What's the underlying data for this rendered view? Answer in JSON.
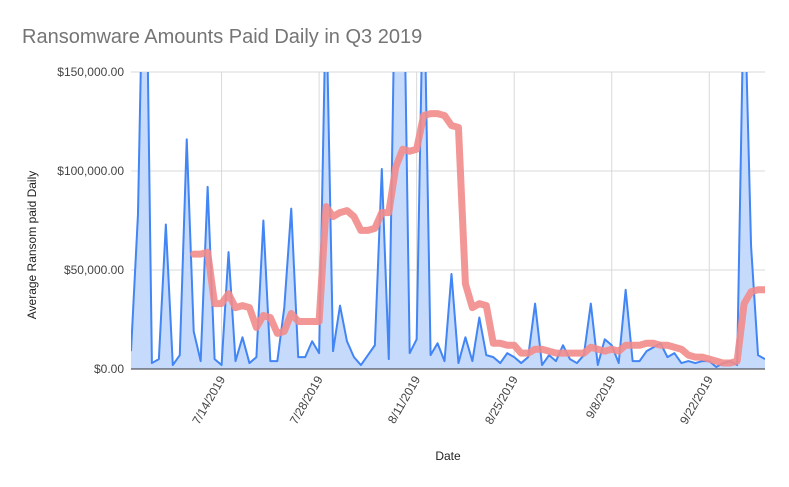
{
  "chart_data": {
    "type": "area",
    "title": "Ransomware Amounts Paid Daily in Q3 2019",
    "xlabel": "Date",
    "ylabel": "Average Ransom paid Daily",
    "x_start": "2019-07-01",
    "x_end": "2019-09-30",
    "ylim": [
      0,
      150000
    ],
    "yticks": [
      0,
      50000,
      100000,
      150000
    ],
    "ytick_labels": [
      "$0.00",
      "$50,000.00",
      "$100,000.00",
      "$150,000.00"
    ],
    "xticks": [
      "2019-07-14",
      "2019-07-28",
      "2019-08-11",
      "2019-08-25",
      "2019-09-08",
      "2019-09-22"
    ],
    "xtick_labels": [
      "7/14/2019",
      "7/28/2019",
      "8/11/2019",
      "8/25/2019",
      "9/8/2019",
      "9/22/2019"
    ],
    "grid": true,
    "legend": "none",
    "series": [
      {
        "kind": "area",
        "color": "#4285f4",
        "fill": "#c6dafc",
        "points": [
          [
            "2019-07-01",
            9000
          ],
          [
            "2019-07-02",
            78000
          ],
          [
            "2019-07-03",
            260000
          ],
          [
            "2019-07-04",
            3000
          ],
          [
            "2019-07-05",
            5000
          ],
          [
            "2019-07-06",
            73000
          ],
          [
            "2019-07-07",
            2000
          ],
          [
            "2019-07-08",
            7000
          ],
          [
            "2019-07-09",
            116000
          ],
          [
            "2019-07-10",
            19000
          ],
          [
            "2019-07-11",
            4000
          ],
          [
            "2019-07-12",
            92000
          ],
          [
            "2019-07-13",
            5000
          ],
          [
            "2019-07-14",
            2000
          ],
          [
            "2019-07-15",
            59000
          ],
          [
            "2019-07-16",
            4000
          ],
          [
            "2019-07-17",
            16000
          ],
          [
            "2019-07-18",
            3000
          ],
          [
            "2019-07-19",
            6000
          ],
          [
            "2019-07-20",
            75000
          ],
          [
            "2019-07-21",
            4000
          ],
          [
            "2019-07-22",
            4000
          ],
          [
            "2019-07-23",
            31000
          ],
          [
            "2019-07-24",
            81000
          ],
          [
            "2019-07-25",
            6000
          ],
          [
            "2019-07-26",
            6000
          ],
          [
            "2019-07-27",
            14000
          ],
          [
            "2019-07-28",
            8000
          ],
          [
            "2019-07-29",
            190000
          ],
          [
            "2019-07-30",
            9000
          ],
          [
            "2019-07-31",
            32000
          ],
          [
            "2019-08-01",
            14000
          ],
          [
            "2019-08-02",
            6000
          ],
          [
            "2019-08-03",
            2000
          ],
          [
            "2019-08-04",
            7000
          ],
          [
            "2019-08-05",
            12000
          ],
          [
            "2019-08-06",
            101000
          ],
          [
            "2019-08-07",
            5000
          ],
          [
            "2019-08-08",
            220000
          ],
          [
            "2019-08-09",
            240000
          ],
          [
            "2019-08-10",
            8000
          ],
          [
            "2019-08-11",
            15000
          ],
          [
            "2019-08-12",
            210000
          ],
          [
            "2019-08-13",
            7000
          ],
          [
            "2019-08-14",
            13000
          ],
          [
            "2019-08-15",
            4000
          ],
          [
            "2019-08-16",
            48000
          ],
          [
            "2019-08-17",
            3000
          ],
          [
            "2019-08-18",
            16000
          ],
          [
            "2019-08-19",
            4000
          ],
          [
            "2019-08-20",
            26000
          ],
          [
            "2019-08-21",
            7000
          ],
          [
            "2019-08-22",
            6000
          ],
          [
            "2019-08-23",
            3000
          ],
          [
            "2019-08-24",
            8000
          ],
          [
            "2019-08-25",
            6000
          ],
          [
            "2019-08-26",
            3000
          ],
          [
            "2019-08-27",
            6000
          ],
          [
            "2019-08-28",
            33000
          ],
          [
            "2019-08-29",
            2000
          ],
          [
            "2019-08-30",
            7000
          ],
          [
            "2019-08-31",
            4000
          ],
          [
            "2019-09-01",
            12000
          ],
          [
            "2019-09-02",
            5000
          ],
          [
            "2019-09-03",
            3000
          ],
          [
            "2019-09-04",
            7000
          ],
          [
            "2019-09-05",
            33000
          ],
          [
            "2019-09-06",
            2000
          ],
          [
            "2019-09-07",
            15000
          ],
          [
            "2019-09-08",
            12000
          ],
          [
            "2019-09-09",
            3000
          ],
          [
            "2019-09-10",
            40000
          ],
          [
            "2019-09-11",
            4000
          ],
          [
            "2019-09-12",
            4000
          ],
          [
            "2019-09-13",
            9000
          ],
          [
            "2019-09-14",
            11000
          ],
          [
            "2019-09-15",
            13000
          ],
          [
            "2019-09-16",
            6000
          ],
          [
            "2019-09-17",
            8000
          ],
          [
            "2019-09-18",
            3000
          ],
          [
            "2019-09-19",
            4000
          ],
          [
            "2019-09-20",
            3000
          ],
          [
            "2019-09-21",
            4000
          ],
          [
            "2019-09-22",
            4000
          ],
          [
            "2019-09-23",
            1000
          ],
          [
            "2019-09-24",
            3000
          ],
          [
            "2019-09-25",
            4000
          ],
          [
            "2019-09-26",
            2000
          ],
          [
            "2019-09-27",
            200000
          ],
          [
            "2019-09-28",
            62000
          ],
          [
            "2019-09-29",
            7000
          ],
          [
            "2019-09-30",
            5000
          ]
        ]
      },
      {
        "kind": "line",
        "color": "#f28b8b",
        "points": [
          [
            "2019-07-10",
            58000
          ],
          [
            "2019-07-11",
            58000
          ],
          [
            "2019-07-12",
            59000
          ],
          [
            "2019-07-13",
            33000
          ],
          [
            "2019-07-14",
            33000
          ],
          [
            "2019-07-15",
            38000
          ],
          [
            "2019-07-16",
            31000
          ],
          [
            "2019-07-17",
            32000
          ],
          [
            "2019-07-18",
            31000
          ],
          [
            "2019-07-19",
            21000
          ],
          [
            "2019-07-20",
            27000
          ],
          [
            "2019-07-21",
            26000
          ],
          [
            "2019-07-22",
            18000
          ],
          [
            "2019-07-23",
            19000
          ],
          [
            "2019-07-24",
            28000
          ],
          [
            "2019-07-25",
            24000
          ],
          [
            "2019-07-26",
            24000
          ],
          [
            "2019-07-27",
            24000
          ],
          [
            "2019-07-28",
            24000
          ],
          [
            "2019-07-29",
            82000
          ],
          [
            "2019-07-30",
            77000
          ],
          [
            "2019-07-31",
            79000
          ],
          [
            "2019-08-01",
            80000
          ],
          [
            "2019-08-02",
            77000
          ],
          [
            "2019-08-03",
            70000
          ],
          [
            "2019-08-04",
            70000
          ],
          [
            "2019-08-05",
            71000
          ],
          [
            "2019-08-06",
            79000
          ],
          [
            "2019-08-07",
            79000
          ],
          [
            "2019-08-08",
            102000
          ],
          [
            "2019-08-09",
            111000
          ],
          [
            "2019-08-10",
            110000
          ],
          [
            "2019-08-11",
            111000
          ],
          [
            "2019-08-12",
            128000
          ],
          [
            "2019-08-13",
            129000
          ],
          [
            "2019-08-14",
            129000
          ],
          [
            "2019-08-15",
            128000
          ],
          [
            "2019-08-16",
            123000
          ],
          [
            "2019-08-17",
            122000
          ],
          [
            "2019-08-18",
            43000
          ],
          [
            "2019-08-19",
            31000
          ],
          [
            "2019-08-20",
            33000
          ],
          [
            "2019-08-21",
            32000
          ],
          [
            "2019-08-22",
            13000
          ],
          [
            "2019-08-23",
            13000
          ],
          [
            "2019-08-24",
            12000
          ],
          [
            "2019-08-25",
            12000
          ],
          [
            "2019-08-26",
            8000
          ],
          [
            "2019-08-27",
            8000
          ],
          [
            "2019-08-28",
            10000
          ],
          [
            "2019-08-29",
            10000
          ],
          [
            "2019-08-30",
            9000
          ],
          [
            "2019-08-31",
            8000
          ],
          [
            "2019-09-01",
            8000
          ],
          [
            "2019-09-02",
            8000
          ],
          [
            "2019-09-03",
            8000
          ],
          [
            "2019-09-04",
            8000
          ],
          [
            "2019-09-05",
            11000
          ],
          [
            "2019-09-06",
            10000
          ],
          [
            "2019-09-07",
            9000
          ],
          [
            "2019-09-08",
            10000
          ],
          [
            "2019-09-09",
            9000
          ],
          [
            "2019-09-10",
            12000
          ],
          [
            "2019-09-11",
            12000
          ],
          [
            "2019-09-12",
            12000
          ],
          [
            "2019-09-13",
            13000
          ],
          [
            "2019-09-14",
            13000
          ],
          [
            "2019-09-15",
            12000
          ],
          [
            "2019-09-16",
            12000
          ],
          [
            "2019-09-17",
            11000
          ],
          [
            "2019-09-18",
            10000
          ],
          [
            "2019-09-19",
            7000
          ],
          [
            "2019-09-20",
            6000
          ],
          [
            "2019-09-21",
            6000
          ],
          [
            "2019-09-22",
            5000
          ],
          [
            "2019-09-23",
            4000
          ],
          [
            "2019-09-24",
            3000
          ],
          [
            "2019-09-25",
            3000
          ],
          [
            "2019-09-26",
            4000
          ],
          [
            "2019-09-27",
            33000
          ],
          [
            "2019-09-28",
            39000
          ],
          [
            "2019-09-29",
            40000
          ],
          [
            "2019-09-30",
            40000
          ]
        ]
      }
    ]
  }
}
